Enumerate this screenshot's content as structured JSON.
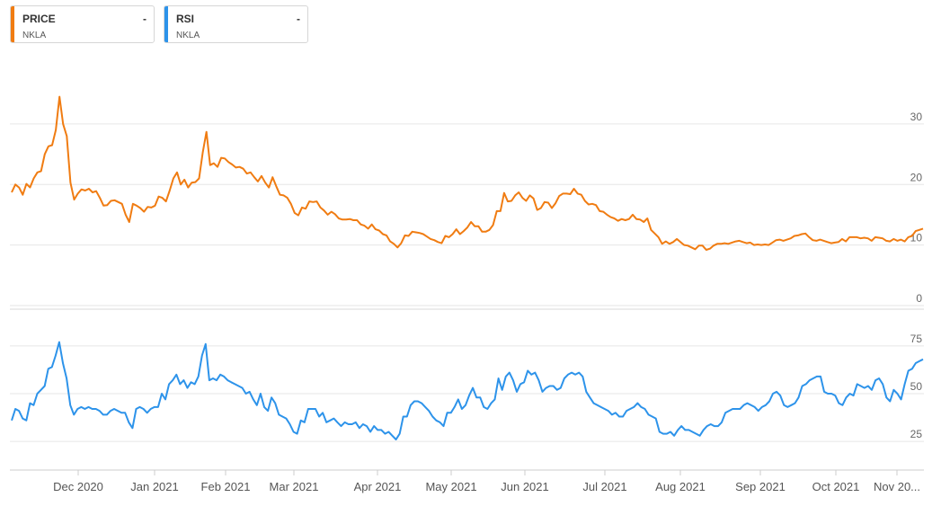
{
  "legends": [
    {
      "name": "PRICE",
      "symbol": "NKLA",
      "value": "-",
      "color": "#f07c12"
    },
    {
      "name": "RSI",
      "symbol": "NKLA",
      "value": "-",
      "color": "#2d93ea"
    }
  ],
  "chart_data": [
    {
      "type": "line",
      "series": [
        {
          "name": "PRICE",
          "color": "#f07c12",
          "values": [
            18.7,
            20,
            19.5,
            18.3,
            20.1,
            19.5,
            21,
            22,
            22.2,
            25,
            26.3,
            26.5,
            29,
            34.5,
            30,
            28,
            20.3,
            17.5,
            18.5,
            19.2,
            19,
            19.3,
            18.7,
            18.9,
            17.8,
            16.5,
            16.6,
            17.3,
            17.4,
            17.1,
            16.8,
            15,
            13.8,
            16.8,
            16.5,
            16.1,
            15.5,
            16.3,
            16.2,
            16.5,
            18,
            17.8,
            17.2,
            19,
            21,
            22,
            20,
            20.8,
            19.5,
            20.3,
            20.4,
            21,
            25.3,
            28.7,
            23.2,
            23.5,
            22.9,
            24.4,
            24.3,
            23.7,
            23.3,
            22.8,
            22.9,
            22.6,
            21.8,
            22,
            21.2,
            20.5,
            21.4,
            20.3,
            19.5,
            21.2,
            19.7,
            18.3,
            18.2,
            17.8,
            16.8,
            15.3,
            14.9,
            16.2,
            16,
            17.2,
            17.1,
            17.2,
            16.2,
            15.7,
            15,
            15.5,
            15.1,
            14.4,
            14.2,
            14.2,
            14.3,
            14.1,
            14.1,
            13.4,
            13.2,
            12.7,
            13.4,
            12.6,
            12.4,
            11.8,
            11.6,
            10.6,
            10.2,
            9.6,
            10.3,
            11.6,
            11.5,
            12.2,
            12.1,
            12,
            11.8,
            11.4,
            11,
            10.8,
            10.5,
            10.3,
            11.5,
            11.3,
            11.8,
            12.6,
            11.8,
            12.3,
            12.9,
            13.8,
            13.1,
            13.1,
            12.2,
            12.2,
            12.5,
            13.3,
            15.6,
            15.6,
            18.6,
            17.2,
            17.3,
            18.2,
            18.7,
            17.8,
            17.3,
            18.2,
            17.7,
            15.8,
            16.1,
            17.1,
            17,
            16.1,
            16.9,
            18.1,
            18.5,
            18.5,
            18.4,
            19.3,
            18.5,
            18.3,
            17.3,
            16.7,
            16.8,
            16.6,
            15.6,
            15.5,
            15,
            14.6,
            14.4,
            14,
            14.3,
            14.1,
            14.3,
            15,
            14.3,
            14.2,
            13.8,
            14.4,
            12.5,
            11.9,
            11.3,
            10.2,
            10.6,
            10.2,
            10.5,
            11,
            10.5,
            10,
            9.9,
            9.6,
            9.3,
            9.9,
            9.9,
            9.2,
            9.4,
            9.9,
            10.2,
            10.2,
            10.3,
            10.2,
            10.4,
            10.6,
            10.7,
            10.5,
            10.3,
            10.4,
            10,
            10.1,
            10,
            10.1,
            10,
            10.4,
            10.8,
            10.9,
            10.7,
            10.9,
            11.1,
            11.5,
            11.6,
            11.8,
            11.9,
            11.3,
            10.8,
            10.7,
            10.9,
            10.7,
            10.5,
            10.3,
            10.4,
            10.5,
            11,
            10.6,
            11.3,
            11.3,
            11.3,
            11.1,
            11.2,
            11.1,
            10.7,
            11.3,
            11.2,
            11.1,
            10.7,
            10.6,
            11,
            10.7,
            10.9,
            10.6,
            11.3,
            11.5,
            12.3,
            12.5,
            12.7
          ]
        }
      ],
      "x_labels": [
        "Dec 2020",
        "Jan 2021",
        "Feb 2021",
        "Mar 2021",
        "Apr 2021",
        "May 2021",
        "Jun 2021",
        "Jul 2021",
        "Aug 2021",
        "Sep 2021",
        "Oct 2021",
        "Nov 20..."
      ],
      "yticks": [
        0,
        10,
        20,
        30
      ],
      "ylim": [
        0,
        38
      ],
      "grid": true
    },
    {
      "type": "line",
      "series": [
        {
          "name": "RSI",
          "color": "#2d93ea",
          "values": [
            36,
            42,
            41,
            37,
            36,
            45,
            44,
            50,
            52,
            54,
            63,
            64,
            70,
            77,
            66,
            58,
            44,
            39,
            42,
            43,
            42,
            43,
            42,
            42,
            41,
            39,
            39,
            41,
            42,
            41,
            40,
            40,
            35,
            32,
            42,
            43,
            42,
            40,
            42,
            43,
            43,
            50,
            47,
            55,
            57,
            60,
            55,
            57,
            53,
            56,
            55,
            59,
            70,
            76,
            57,
            58,
            57,
            60,
            59,
            57,
            56,
            55,
            54,
            53,
            50,
            51,
            47,
            44,
            50,
            43,
            41,
            48,
            45,
            39,
            38,
            37,
            34,
            30,
            29,
            36,
            35,
            42,
            42,
            42,
            38,
            40,
            35,
            36,
            37,
            35,
            33,
            35,
            34,
            34,
            35,
            32,
            34,
            33,
            30,
            33,
            31,
            31,
            29,
            30,
            28,
            26,
            29,
            38,
            38,
            44,
            46,
            46,
            45,
            43,
            41,
            38,
            36,
            35,
            33,
            40,
            40,
            43,
            47,
            42,
            44,
            49,
            53,
            48,
            48,
            43,
            42,
            45,
            47,
            58,
            52,
            59,
            61,
            57,
            51,
            55,
            56,
            62,
            60,
            61,
            57,
            51,
            53,
            54,
            54,
            52,
            53,
            58,
            60,
            61,
            60,
            61,
            59,
            51,
            48,
            45,
            44,
            43,
            42,
            41,
            39,
            40,
            38,
            38,
            41,
            42,
            43,
            45,
            43,
            42,
            39,
            38,
            37,
            30,
            29,
            29,
            30,
            28,
            31,
            33,
            31,
            31,
            30,
            29,
            28,
            31,
            33,
            34,
            33,
            33,
            35,
            40,
            41,
            42,
            42,
            42,
            44,
            45,
            44,
            43,
            41,
            43,
            44,
            46,
            50,
            51,
            49,
            44,
            43,
            44,
            45,
            48,
            54,
            55,
            57,
            58,
            59,
            59,
            51,
            50,
            50,
            49,
            45,
            44,
            48,
            50,
            49,
            55,
            54,
            53,
            54,
            52,
            57,
            58,
            55,
            48,
            46,
            52,
            50,
            47,
            55,
            62,
            63,
            66,
            67,
            68
          ]
        }
      ],
      "x_labels": [
        "Dec 2020",
        "Jan 2021",
        "Feb 2021",
        "Mar 2021",
        "Apr 2021",
        "May 2021",
        "Jun 2021",
        "Jul 2021",
        "Aug 2021",
        "Sep 2021",
        "Oct 2021",
        "Nov 20..."
      ],
      "yticks": [
        25,
        50,
        75
      ],
      "ylim": [
        10,
        90
      ],
      "grid": true
    }
  ]
}
